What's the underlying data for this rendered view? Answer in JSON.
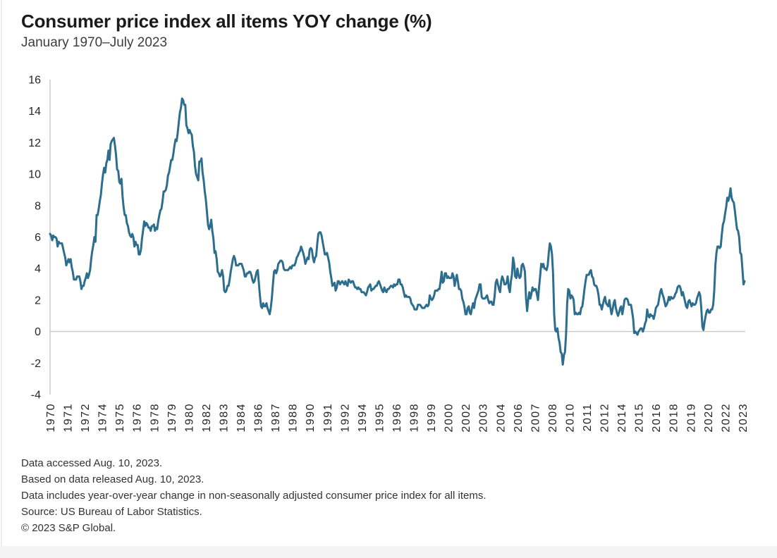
{
  "header": {
    "title": "Consumer price index all items YOY change (%)",
    "subtitle": "January 1970–July 2023"
  },
  "chart_data": {
    "type": "line",
    "title": "Consumer price index all items YOY change (%)",
    "subtitle": "January 1970–July 2023",
    "x_unit": "month",
    "x_start": "1970-01",
    "x_end": "2023-07",
    "ylim": [
      -4,
      16
    ],
    "y_ticks": [
      16,
      14,
      12,
      10,
      8,
      6,
      4,
      2,
      0,
      -2,
      -4
    ],
    "x_tick_interval_months": 16,
    "x_tick_labels": [
      "1970",
      "1971",
      "1972",
      "1974",
      "1975",
      "1976",
      "1978",
      "1979",
      "1980",
      "1982",
      "1983",
      "1984",
      "1986",
      "1987",
      "1988",
      "1990",
      "1991",
      "1992",
      "1994",
      "1995",
      "1996",
      "1998",
      "1999",
      "2000",
      "2002",
      "2003",
      "2004",
      "2006",
      "2007",
      "2008",
      "2010",
      "2011",
      "2012",
      "2014",
      "2015",
      "2016",
      "2018",
      "2019",
      "2020",
      "2022",
      "2023"
    ],
    "grid": false,
    "zero_line": true,
    "legend": "none",
    "line_color": "#2d6e8e",
    "axis_color": "#c9c9c9",
    "text_color": "#262626",
    "series": [
      {
        "name": "CPI all items YOY change (%)",
        "values": [
          6.2,
          6.1,
          5.8,
          6.1,
          6.0,
          6.0,
          5.9,
          5.4,
          5.7,
          5.6,
          5.6,
          5.6,
          5.3,
          5.0,
          4.7,
          4.2,
          4.4,
          4.6,
          4.4,
          4.6,
          4.1,
          3.8,
          3.3,
          3.3,
          3.3,
          3.5,
          3.5,
          3.5,
          3.2,
          2.7,
          2.9,
          2.9,
          3.2,
          3.4,
          3.7,
          3.4,
          3.6,
          3.9,
          4.6,
          5.1,
          5.5,
          6.0,
          5.7,
          7.4,
          7.4,
          7.8,
          8.3,
          8.7,
          9.4,
          10.0,
          10.4,
          10.1,
          10.7,
          10.9,
          11.5,
          10.9,
          11.9,
          12.1,
          12.2,
          12.3,
          11.8,
          11.2,
          10.3,
          10.2,
          9.5,
          9.4,
          9.7,
          8.6,
          7.9,
          7.4,
          7.4,
          6.9,
          6.7,
          6.3,
          6.1,
          6.0,
          6.2,
          6.0,
          5.4,
          5.7,
          5.5,
          5.5,
          4.9,
          4.9,
          5.2,
          5.9,
          6.4,
          7.0,
          6.7,
          6.9,
          6.8,
          6.6,
          6.6,
          6.4,
          6.7,
          6.7,
          6.8,
          6.4,
          6.6,
          6.5,
          7.0,
          7.4,
          7.7,
          7.8,
          8.3,
          8.9,
          8.9,
          9.0,
          9.3,
          9.9,
          10.1,
          10.5,
          10.9,
          10.9,
          11.3,
          11.8,
          12.2,
          12.1,
          12.6,
          13.3,
          13.9,
          14.2,
          14.8,
          14.7,
          14.4,
          14.4,
          13.1,
          12.9,
          12.6,
          12.8,
          12.6,
          12.5,
          11.8,
          11.4,
          10.5,
          10.0,
          9.8,
          9.6,
          10.8,
          10.8,
          11.0,
          10.1,
          9.6,
          8.9,
          8.4,
          7.6,
          6.8,
          6.5,
          6.7,
          7.1,
          6.4,
          5.9,
          5.0,
          5.1,
          4.6,
          3.8,
          3.7,
          3.5,
          3.6,
          3.9,
          3.5,
          2.6,
          2.5,
          2.6,
          2.9,
          2.9,
          3.3,
          3.8,
          4.2,
          4.6,
          4.8,
          4.6,
          4.2,
          4.2,
          4.2,
          4.3,
          4.3,
          4.3,
          4.1,
          3.9,
          3.5,
          3.5,
          3.7,
          3.7,
          3.8,
          3.8,
          3.6,
          3.3,
          3.1,
          3.2,
          3.5,
          3.8,
          3.9,
          3.1,
          2.3,
          1.6,
          1.5,
          1.8,
          1.6,
          1.6,
          1.8,
          1.5,
          1.3,
          1.1,
          1.5,
          2.1,
          3.0,
          3.8,
          3.9,
          3.7,
          3.9,
          4.3,
          4.4,
          4.5,
          4.5,
          4.4,
          4.0,
          3.9,
          3.9,
          3.9,
          3.9,
          4.0,
          4.1,
          4.0,
          4.2,
          4.2,
          4.2,
          4.4,
          4.7,
          4.8,
          5.0,
          5.1,
          5.4,
          5.2,
          5.0,
          4.7,
          4.3,
          4.5,
          4.7,
          4.6,
          5.2,
          5.3,
          5.2,
          4.7,
          4.4,
          4.7,
          4.8,
          5.6,
          6.2,
          6.3,
          6.3,
          6.1,
          5.7,
          5.3,
          4.9,
          4.9,
          5.0,
          4.7,
          4.4,
          3.8,
          3.4,
          2.9,
          3.0,
          3.1,
          2.6,
          2.8,
          3.2,
          3.2,
          3.0,
          3.1,
          3.2,
          3.1,
          3.0,
          3.2,
          3.0,
          2.9,
          3.3,
          3.2,
          3.1,
          3.2,
          3.2,
          3.0,
          2.8,
          2.8,
          2.7,
          2.8,
          2.7,
          2.7,
          2.5,
          2.5,
          2.5,
          2.4,
          2.3,
          2.5,
          2.8,
          2.9,
          3.0,
          2.6,
          2.7,
          2.7,
          2.8,
          2.9,
          2.9,
          3.1,
          3.2,
          3.0,
          2.8,
          2.6,
          2.5,
          2.8,
          2.6,
          2.5,
          2.7,
          2.7,
          2.8,
          2.9,
          2.9,
          2.8,
          3.0,
          2.9,
          3.0,
          3.0,
          3.3,
          3.3,
          3.0,
          3.0,
          2.8,
          2.5,
          2.2,
          2.3,
          2.2,
          2.2,
          2.2,
          2.1,
          1.8,
          1.7,
          1.6,
          1.4,
          1.4,
          1.4,
          1.7,
          1.7,
          1.7,
          1.6,
          1.5,
          1.5,
          1.5,
          1.6,
          1.7,
          1.6,
          1.7,
          2.3,
          2.1,
          2.0,
          2.1,
          2.3,
          2.6,
          2.6,
          2.6,
          2.7,
          2.7,
          3.2,
          3.8,
          3.1,
          3.2,
          3.7,
          3.7,
          3.4,
          3.5,
          3.4,
          3.4,
          3.4,
          3.7,
          3.5,
          2.9,
          3.3,
          3.6,
          3.2,
          2.7,
          2.7,
          2.6,
          2.1,
          1.9,
          1.6,
          1.1,
          1.1,
          1.5,
          1.6,
          1.2,
          1.1,
          1.5,
          1.8,
          1.5,
          2.0,
          2.2,
          2.4,
          2.6,
          3.0,
          3.0,
          2.2,
          2.1,
          2.1,
          2.1,
          2.2,
          2.3,
          2.0,
          1.8,
          1.9,
          1.9,
          1.7,
          1.7,
          2.3,
          3.1,
          3.3,
          3.0,
          2.7,
          2.5,
          3.2,
          3.5,
          3.3,
          3.0,
          3.0,
          3.1,
          3.5,
          2.8,
          2.5,
          3.2,
          3.6,
          4.7,
          4.3,
          3.5,
          3.4,
          4.0,
          3.6,
          3.4,
          3.5,
          4.2,
          4.3,
          4.1,
          3.8,
          2.1,
          1.3,
          2.0,
          2.5,
          2.1,
          2.4,
          2.8,
          2.6,
          2.7,
          2.7,
          2.4,
          2.0,
          2.8,
          3.5,
          4.3,
          4.1,
          4.3,
          4.0,
          4.0,
          3.9,
          4.2,
          5.0,
          5.6,
          5.4,
          4.9,
          3.7,
          1.1,
          0.1,
          0.0,
          0.2,
          -0.4,
          -0.7,
          -1.3,
          -1.4,
          -2.1,
          -1.5,
          -1.3,
          -0.2,
          1.8,
          2.7,
          2.6,
          2.1,
          2.3,
          2.2,
          2.0,
          1.1,
          1.2,
          1.1,
          1.1,
          1.2,
          1.1,
          1.5,
          1.6,
          2.1,
          2.7,
          3.2,
          3.6,
          3.6,
          3.6,
          3.8,
          3.9,
          3.5,
          3.4,
          3.0,
          2.9,
          2.9,
          2.7,
          2.3,
          1.7,
          1.7,
          1.4,
          1.7,
          2.0,
          2.2,
          1.8,
          1.7,
          1.6,
          2.0,
          1.5,
          1.1,
          1.4,
          1.8,
          2.0,
          1.5,
          1.2,
          1.0,
          1.2,
          1.5,
          1.6,
          1.1,
          1.5,
          2.0,
          2.1,
          2.1,
          2.0,
          1.7,
          1.7,
          1.7,
          1.3,
          0.8,
          -0.1,
          0.0,
          -0.1,
          -0.2,
          0.0,
          0.1,
          0.2,
          0.2,
          0.0,
          0.2,
          0.5,
          0.7,
          1.4,
          1.0,
          0.9,
          1.1,
          1.0,
          1.0,
          0.8,
          1.1,
          1.5,
          1.6,
          1.7,
          2.1,
          2.5,
          2.7,
          2.4,
          2.2,
          1.9,
          1.6,
          1.7,
          1.9,
          2.2,
          2.0,
          2.2,
          2.1,
          2.1,
          2.2,
          2.4,
          2.5,
          2.8,
          2.9,
          2.9,
          2.7,
          2.3,
          2.5,
          2.2,
          1.9,
          1.6,
          1.5,
          1.9,
          2.0,
          1.8,
          1.6,
          1.8,
          1.7,
          1.7,
          1.8,
          2.1,
          2.3,
          2.5,
          2.3,
          1.5,
          0.3,
          0.1,
          0.6,
          1.0,
          1.3,
          1.4,
          1.2,
          1.2,
          1.4,
          1.4,
          1.7,
          2.6,
          4.2,
          5.0,
          5.4,
          5.4,
          5.3,
          5.4,
          6.2,
          6.8,
          7.0,
          7.5,
          7.9,
          8.5,
          8.3,
          8.6,
          9.1,
          8.5,
          8.3,
          8.2,
          7.7,
          7.1,
          6.5,
          6.4,
          6.0,
          5.0,
          4.9,
          4.0,
          3.0,
          3.2
        ]
      }
    ]
  },
  "footnotes": [
    "Data accessed Aug. 10, 2023.",
    "Based on data released Aug. 10, 2023.",
    "Data includes year-over-year change in non-seasonally adjusted consumer price index for all items.",
    "Source: US Bureau of Labor Statistics.",
    "© 2023 S&P Global."
  ]
}
